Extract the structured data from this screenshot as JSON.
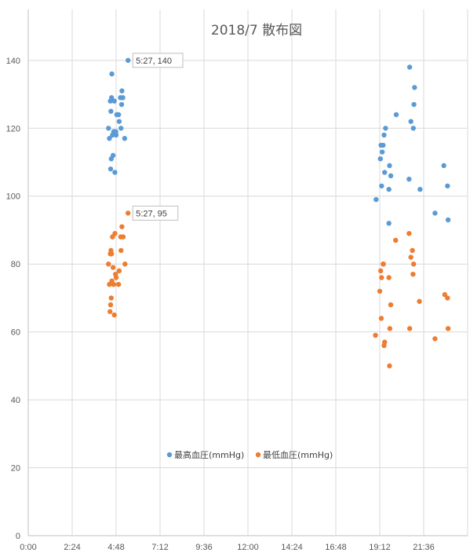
{
  "chart_data": {
    "type": "scatter",
    "title": "2018/7 散布図",
    "xlabel": "",
    "ylabel": "",
    "xlim": [
      0,
      1440
    ],
    "ylim": [
      0,
      140
    ],
    "x_ticks": [
      {
        "value": 0,
        "label": "0:00"
      },
      {
        "value": 144,
        "label": "2:24"
      },
      {
        "value": 288,
        "label": "4:48"
      },
      {
        "value": 432,
        "label": "7:12"
      },
      {
        "value": 576,
        "label": "9:36"
      },
      {
        "value": 720,
        "label": "12:00"
      },
      {
        "value": 864,
        "label": "14:24"
      },
      {
        "value": 1008,
        "label": "16:48"
      },
      {
        "value": 1152,
        "label": "19:12"
      },
      {
        "value": 1296,
        "label": "21:36"
      }
    ],
    "y_ticks": [
      0,
      20,
      40,
      60,
      80,
      100,
      120,
      140
    ],
    "grid": true,
    "legend_position": "bottom",
    "series": [
      {
        "name": "最高血圧(mmHg)",
        "color": "#5b9bd5",
        "points": [
          {
            "x": 263,
            "y": 120
          },
          {
            "x": 266,
            "y": 117
          },
          {
            "x": 269,
            "y": 128
          },
          {
            "x": 271,
            "y": 125
          },
          {
            "x": 273,
            "y": 129
          },
          {
            "x": 274,
            "y": 136
          },
          {
            "x": 270,
            "y": 108
          },
          {
            "x": 272,
            "y": 111
          },
          {
            "x": 276,
            "y": 118
          },
          {
            "x": 278,
            "y": 112
          },
          {
            "x": 280,
            "y": 119
          },
          {
            "x": 282,
            "y": 128
          },
          {
            "x": 284,
            "y": 107
          },
          {
            "x": 287,
            "y": 119
          },
          {
            "x": 288,
            "y": 118
          },
          {
            "x": 290,
            "y": 124
          },
          {
            "x": 296,
            "y": 124
          },
          {
            "x": 298,
            "y": 122
          },
          {
            "x": 302,
            "y": 129
          },
          {
            "x": 304,
            "y": 120
          },
          {
            "x": 306,
            "y": 127
          },
          {
            "x": 307,
            "y": 131
          },
          {
            "x": 310,
            "y": 129
          },
          {
            "x": 316,
            "y": 117
          },
          {
            "x": 327,
            "y": 140
          },
          {
            "x": 1140,
            "y": 99
          },
          {
            "x": 1154,
            "y": 111
          },
          {
            "x": 1156,
            "y": 115
          },
          {
            "x": 1158,
            "y": 103
          },
          {
            "x": 1160,
            "y": 113
          },
          {
            "x": 1163,
            "y": 115
          },
          {
            "x": 1166,
            "y": 118
          },
          {
            "x": 1168,
            "y": 107
          },
          {
            "x": 1171,
            "y": 120
          },
          {
            "x": 1182,
            "y": 102
          },
          {
            "x": 1184,
            "y": 109
          },
          {
            "x": 1188,
            "y": 106
          },
          {
            "x": 1206,
            "y": 124
          },
          {
            "x": 1248,
            "y": 105
          },
          {
            "x": 1250,
            "y": 138
          },
          {
            "x": 1254,
            "y": 122
          },
          {
            "x": 1262,
            "y": 120
          },
          {
            "x": 1264,
            "y": 127
          },
          {
            "x": 1266,
            "y": 132
          },
          {
            "x": 1284,
            "y": 102
          },
          {
            "x": 1333,
            "y": 95
          },
          {
            "x": 1362,
            "y": 109
          },
          {
            "x": 1374,
            "y": 103
          },
          {
            "x": 1376,
            "y": 93
          },
          {
            "x": 1182,
            "y": 92
          }
        ]
      },
      {
        "name": "最低血圧(mmHg)",
        "color": "#ed7d31",
        "points": [
          {
            "x": 263,
            "y": 80
          },
          {
            "x": 266,
            "y": 74
          },
          {
            "x": 268,
            "y": 66
          },
          {
            "x": 269,
            "y": 83
          },
          {
            "x": 270,
            "y": 68
          },
          {
            "x": 271,
            "y": 84
          },
          {
            "x": 272,
            "y": 70
          },
          {
            "x": 273,
            "y": 83
          },
          {
            "x": 274,
            "y": 75
          },
          {
            "x": 276,
            "y": 88
          },
          {
            "x": 278,
            "y": 79
          },
          {
            "x": 280,
            "y": 74
          },
          {
            "x": 282,
            "y": 65
          },
          {
            "x": 284,
            "y": 89
          },
          {
            "x": 286,
            "y": 77
          },
          {
            "x": 288,
            "y": 76
          },
          {
            "x": 296,
            "y": 74
          },
          {
            "x": 298,
            "y": 78
          },
          {
            "x": 303,
            "y": 88
          },
          {
            "x": 304,
            "y": 84
          },
          {
            "x": 307,
            "y": 91
          },
          {
            "x": 311,
            "y": 88
          },
          {
            "x": 317,
            "y": 80
          },
          {
            "x": 327,
            "y": 95
          },
          {
            "x": 1138,
            "y": 59
          },
          {
            "x": 1152,
            "y": 72
          },
          {
            "x": 1155,
            "y": 78
          },
          {
            "x": 1157,
            "y": 64
          },
          {
            "x": 1158,
            "y": 76
          },
          {
            "x": 1163,
            "y": 80
          },
          {
            "x": 1164,
            "y": 80
          },
          {
            "x": 1166,
            "y": 56
          },
          {
            "x": 1168,
            "y": 57
          },
          {
            "x": 1182,
            "y": 76
          },
          {
            "x": 1184,
            "y": 50
          },
          {
            "x": 1185,
            "y": 61
          },
          {
            "x": 1188,
            "y": 68
          },
          {
            "x": 1204,
            "y": 87
          },
          {
            "x": 1248,
            "y": 89
          },
          {
            "x": 1250,
            "y": 61
          },
          {
            "x": 1254,
            "y": 82
          },
          {
            "x": 1259,
            "y": 84
          },
          {
            "x": 1261,
            "y": 77
          },
          {
            "x": 1263,
            "y": 80
          },
          {
            "x": 1282,
            "y": 69
          },
          {
            "x": 1333,
            "y": 58
          },
          {
            "x": 1365,
            "y": 71
          },
          {
            "x": 1374,
            "y": 70
          },
          {
            "x": 1376,
            "y": 61
          }
        ]
      }
    ],
    "annotations": [
      {
        "series": 0,
        "x": 327,
        "y": 140,
        "text": "5:27, 140"
      },
      {
        "series": 1,
        "x": 327,
        "y": 95,
        "text": "5:27, 95"
      }
    ]
  }
}
